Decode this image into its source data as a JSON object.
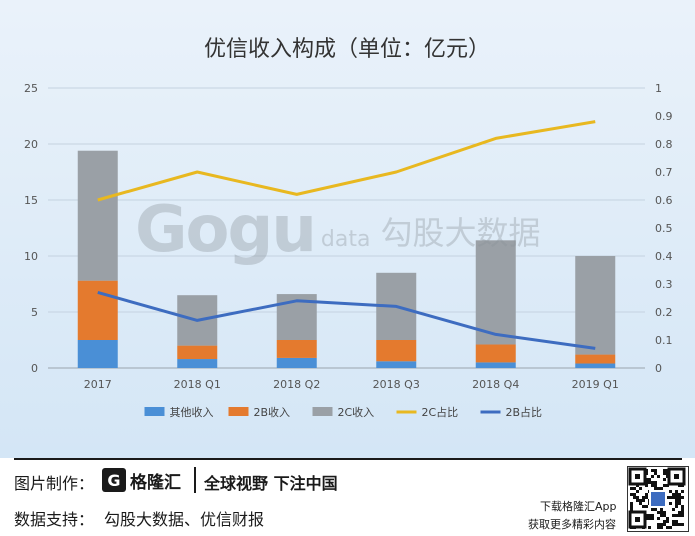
{
  "chart_data": {
    "type": "bar",
    "title": "优信收入构成（单位：亿元）",
    "categories": [
      "2017",
      "2018 Q1",
      "2018 Q2",
      "2018 Q3",
      "2018 Q4",
      "2019 Q1"
    ],
    "ylim": [
      0,
      25
    ],
    "y_ticks": [
      "0",
      "5",
      "10",
      "15",
      "20",
      "25"
    ],
    "y2lim": [
      0,
      1
    ],
    "y2_ticks": [
      "0",
      "0.1",
      "0.2",
      "0.3",
      "0.4",
      "0.5",
      "0.6",
      "0.7",
      "0.8",
      "0.9",
      "1"
    ],
    "stacked": true,
    "grid": true,
    "legend_position": "bottom",
    "series": [
      {
        "name": "其他收入",
        "kind": "bar",
        "axis": "left",
        "color": "#4a8fd6",
        "values": [
          2.5,
          0.8,
          0.9,
          0.6,
          0.5,
          0.4
        ]
      },
      {
        "name": "2B收入",
        "kind": "bar",
        "axis": "left",
        "color": "#e47a2e",
        "values": [
          5.3,
          1.2,
          1.6,
          1.9,
          1.6,
          0.8
        ]
      },
      {
        "name": "2C收入",
        "kind": "bar",
        "axis": "left",
        "color": "#9aa0a6",
        "values": [
          11.6,
          4.5,
          4.1,
          6.0,
          9.3,
          8.8
        ]
      },
      {
        "name": "2C占比",
        "kind": "line",
        "axis": "right",
        "color": "#e8b820",
        "values": [
          0.6,
          0.7,
          0.62,
          0.7,
          0.82,
          0.88
        ]
      },
      {
        "name": "2B占比",
        "kind": "line",
        "axis": "right",
        "color": "#3d6cc0",
        "values": [
          0.27,
          0.17,
          0.24,
          0.22,
          0.12,
          0.07
        ]
      }
    ]
  },
  "watermark": {
    "word": "Gogu",
    "sub": "data",
    "cn": "勾股大数据"
  },
  "footer": {
    "credit_label": "图片制作：",
    "brand_mark": "G",
    "brand_name": "格隆汇",
    "slogan": "全球视野 下注中国",
    "source_label": "数据支持：",
    "source_value": "勾股大数据、优信财报",
    "app_line1": "下载格隆汇App",
    "app_line2": "获取更多精彩内容"
  }
}
